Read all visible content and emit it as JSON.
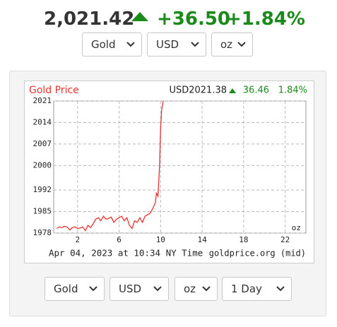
{
  "header": {
    "price": "2,021.42",
    "change": "+36.50",
    "change_pct": "+1.84%"
  },
  "selectors_top": [
    "Gold",
    "USD",
    "oz"
  ],
  "selectors_bottom": [
    "Gold",
    "USD",
    "oz",
    "1 Day"
  ],
  "chart_data": {
    "type": "line",
    "title": "Gold Price",
    "annotations": {
      "price": "USD2021.38",
      "change": "36.46",
      "change_pct": "1.84%",
      "unit": "oz",
      "timestamp": "Apr 04, 2023 at 10:34 NY Time",
      "source": "goldprice.org (mid)"
    },
    "x": [
      0,
      0.25,
      0.5,
      0.75,
      1,
      1.25,
      1.5,
      1.75,
      2,
      2.25,
      2.5,
      2.75,
      3,
      3.25,
      3.5,
      3.75,
      4,
      4.25,
      4.5,
      4.75,
      5,
      5.25,
      5.5,
      5.75,
      6,
      6.25,
      6.5,
      6.75,
      7,
      7.25,
      7.5,
      7.75,
      8,
      8.25,
      8.5,
      8.75,
      9,
      9.25,
      9.5,
      9.6,
      9.75,
      9.9,
      10,
      10.1,
      10.25
    ],
    "series": [
      {
        "name": "Gold Price",
        "color": "#e8322e",
        "values": [
          1979.5,
          1980,
          1979.8,
          1980.2,
          1980,
          1979,
          1979.8,
          1980,
          1979.5,
          1979.6,
          1980,
          1978.8,
          1980.5,
          1979.8,
          1981,
          1982.5,
          1983,
          1982,
          1983.5,
          1982.5,
          1982.8,
          1983.2,
          1981.5,
          1982.5,
          1983,
          1983.5,
          1982,
          1983,
          1980.5,
          1979.5,
          1982,
          1981.5,
          1983,
          1981.5,
          1983.5,
          1984,
          1984.5,
          1986,
          1988,
          1991,
          1990,
          2000,
          2012,
          2018,
          2021
        ]
      }
    ],
    "xlim": [
      -0.3,
      24
    ],
    "xticks": [
      2,
      6,
      10,
      14,
      18,
      22
    ],
    "ylim": [
      1978,
      2021
    ],
    "yticks": [
      1978,
      1985,
      1992,
      2000,
      2007,
      2014,
      2021
    ],
    "grid": true,
    "title_color": "#e8322e",
    "up_color": "#1a8a1a"
  }
}
